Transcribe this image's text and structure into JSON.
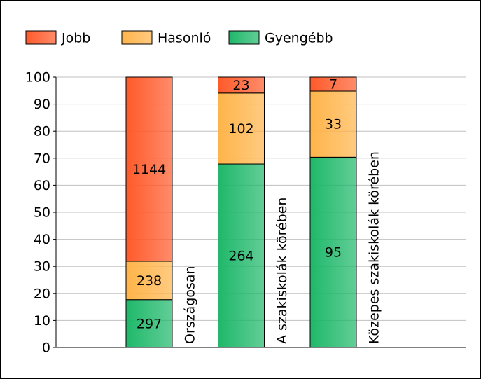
{
  "chart_data": {
    "type": "percent-stacked-bar",
    "categories": [
      "Országosan",
      "A szakiskolák körében",
      "Közepes szakiskolák körében"
    ],
    "series": [
      {
        "name": "Gyengébb",
        "color": "#1fb86a",
        "values": [
          297,
          264,
          95
        ]
      },
      {
        "name": "Hasonló",
        "color": "#ffb44a",
        "values": [
          238,
          102,
          33
        ]
      },
      {
        "name": "Jobb",
        "color": "#ff5a2a",
        "values": [
          1144,
          23,
          7
        ]
      }
    ],
    "legend_order": [
      2,
      1,
      0
    ],
    "ylim": [
      0,
      100
    ],
    "yticks": [
      0,
      10,
      20,
      30,
      40,
      50,
      60,
      70,
      80,
      90,
      100
    ],
    "grid": true,
    "legend": "top"
  }
}
